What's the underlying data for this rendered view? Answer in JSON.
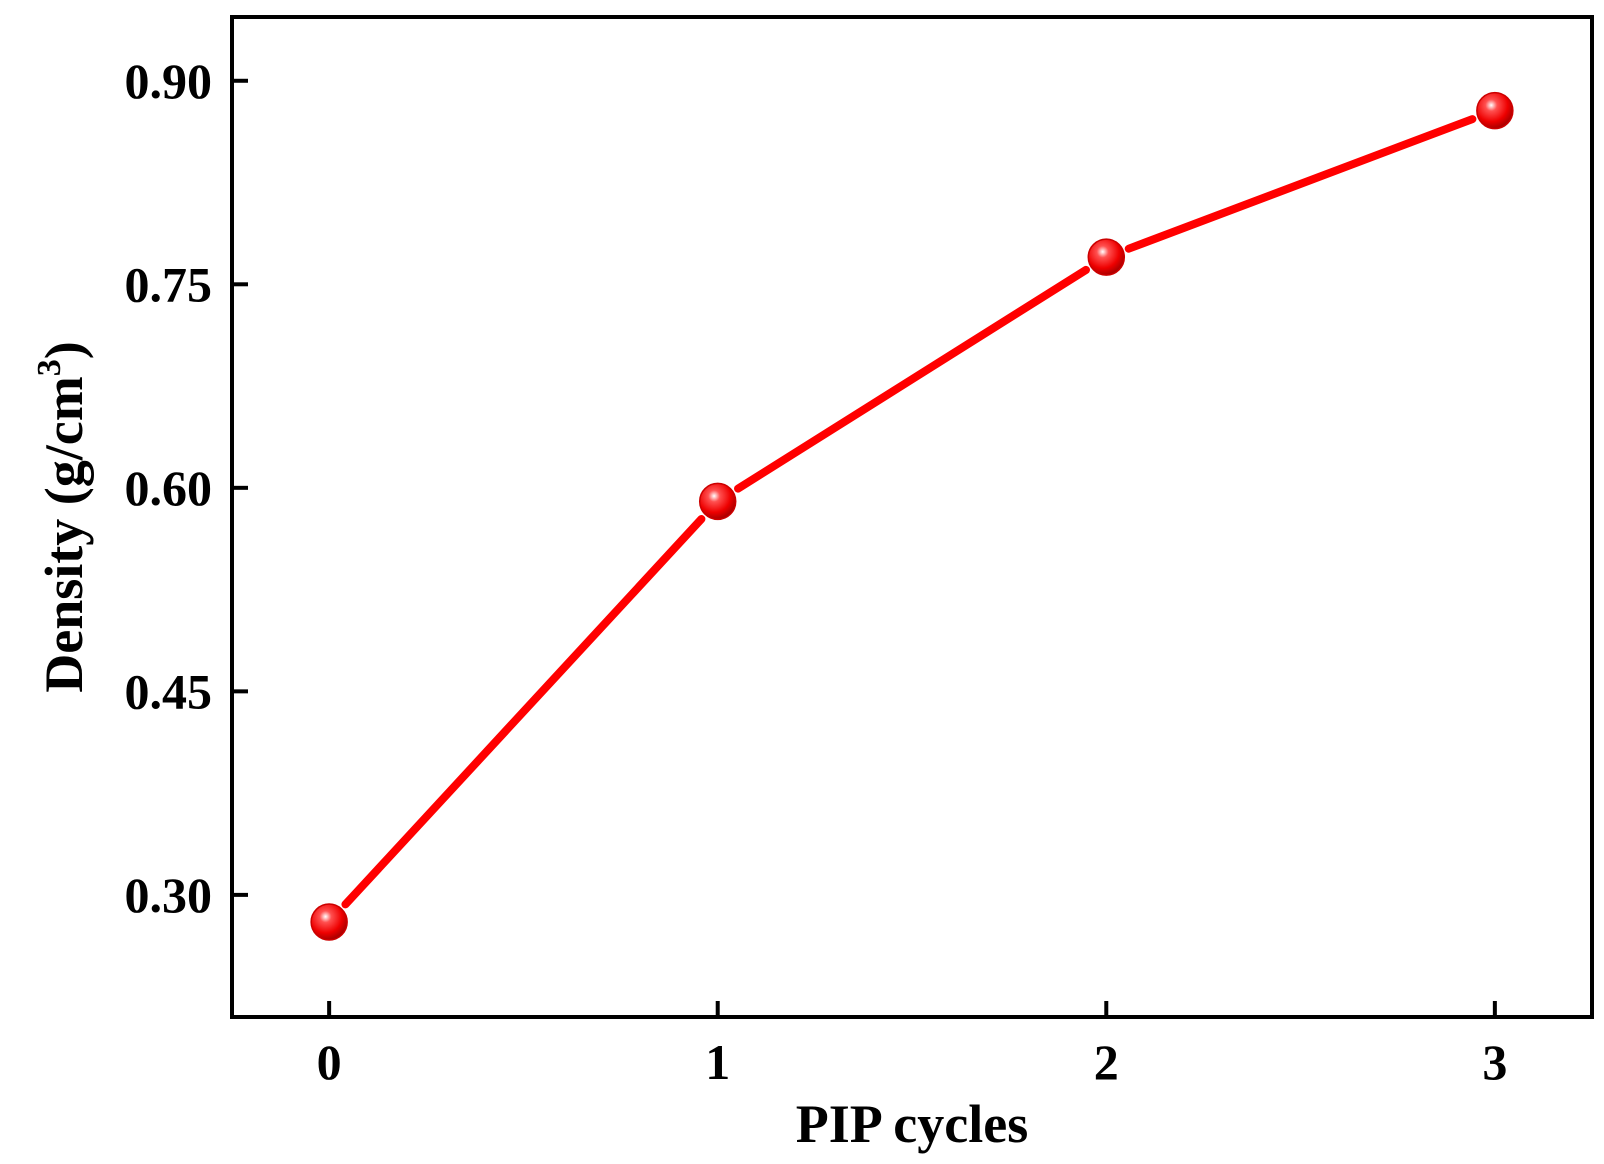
{
  "chart_data": {
    "type": "line",
    "title": "",
    "xlabel": "PIP cycles",
    "ylabel": {
      "main": "Density (g/cm",
      "sup": "3",
      "close": ")"
    },
    "x_ticks": [
      "0",
      "1",
      "2",
      "3"
    ],
    "y_ticks": [
      "0.30",
      "0.45",
      "0.60",
      "0.75",
      "0.90"
    ],
    "xlim": [
      -0.25,
      3.25
    ],
    "ylim": [
      0.21,
      0.947
    ],
    "grid": false,
    "legend": "none",
    "series": [
      {
        "x": [
          0,
          1,
          2,
          3
        ],
        "values": [
          0.28,
          0.59,
          0.77,
          0.878
        ],
        "color": "#ff0000"
      }
    ]
  }
}
